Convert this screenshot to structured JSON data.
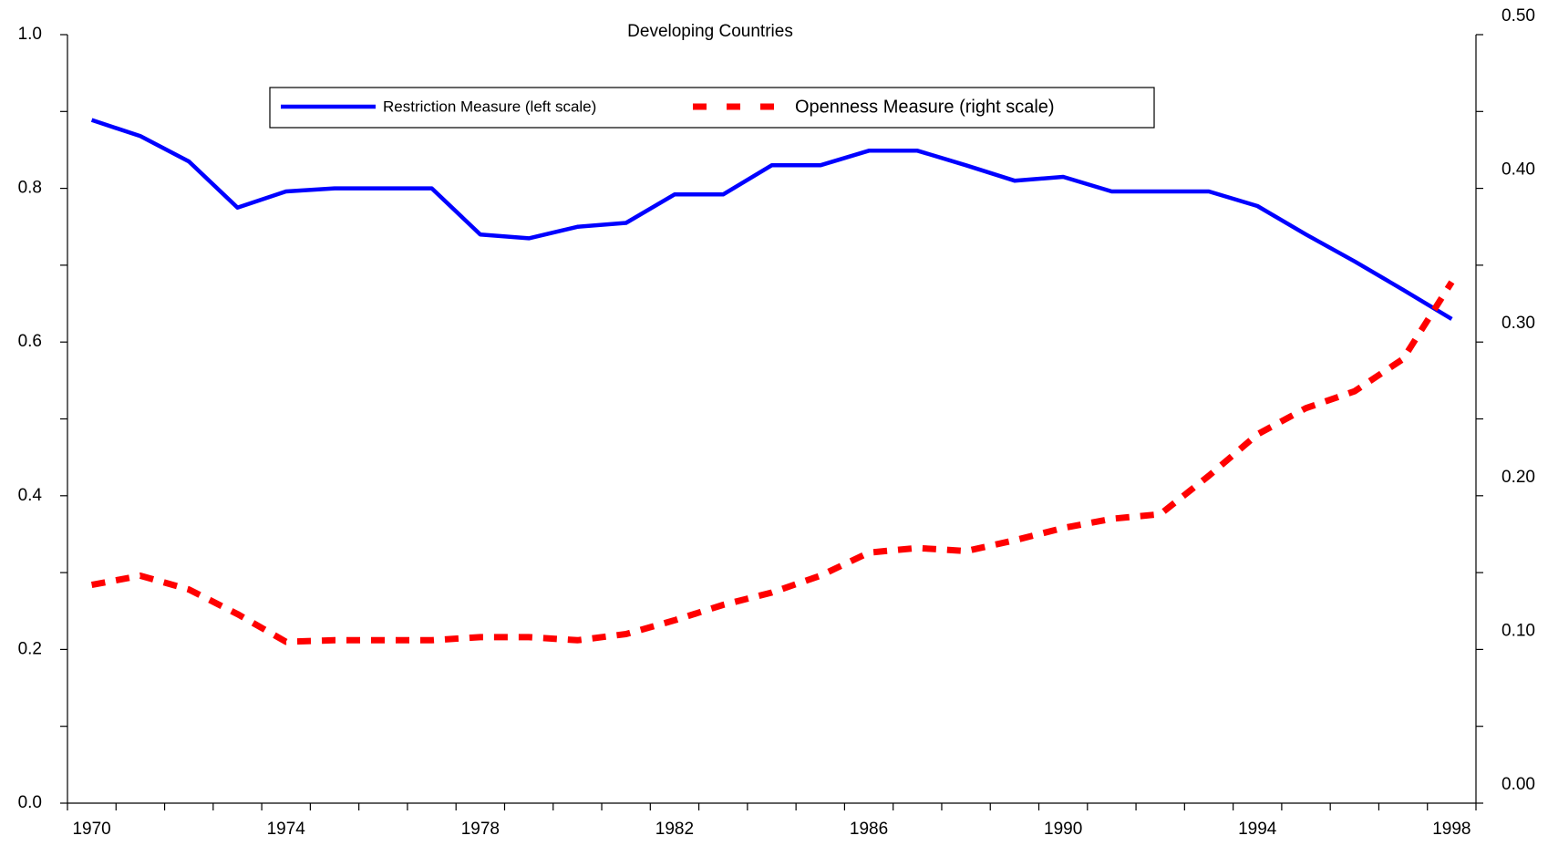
{
  "chart_data": {
    "type": "line",
    "title": "Developing Countries",
    "categories": [
      "1970",
      null,
      null,
      null,
      "1974",
      null,
      null,
      null,
      "1978",
      null,
      null,
      null,
      "1982",
      null,
      null,
      null,
      "1986",
      null,
      null,
      null,
      "1990",
      null,
      null,
      null,
      "1994",
      null,
      null,
      null,
      "1998"
    ],
    "series": [
      {
        "name": "Restriction Measure (left scale)",
        "color": "#0000ff",
        "axis": "y",
        "values": [
          0.889,
          0.868,
          0.835,
          0.775,
          0.796,
          0.8,
          0.8,
          0.8,
          0.74,
          0.735,
          0.75,
          0.755,
          0.792,
          0.792,
          0.83,
          0.83,
          0.849,
          0.849,
          0.83,
          0.81,
          0.815,
          0.796,
          0.796,
          0.796,
          0.777,
          0.74,
          0.705,
          0.668,
          0.63
        ]
      },
      {
        "name": "Openness Measure (right scale)",
        "color": "#ff0000",
        "axis": "y2",
        "dashed": true,
        "values": [
          0.142,
          0.148,
          0.139,
          0.123,
          0.105,
          0.106,
          0.106,
          0.106,
          0.108,
          0.108,
          0.106,
          0.11,
          0.119,
          0.129,
          0.137,
          0.148,
          0.163,
          0.166,
          0.164,
          0.171,
          0.179,
          0.185,
          0.188,
          0.213,
          0.24,
          0.257,
          0.268,
          0.289,
          0.339
        ]
      }
    ],
    "ylim": [
      0,
      1
    ],
    "yticks": [
      {
        "value": 0,
        "label": "0.0"
      },
      0.2,
      0.4,
      0.6,
      0.8,
      {
        "value": 1,
        "label": "1.0"
      }
    ],
    "y2lim": [
      0,
      0.5
    ],
    "y2ticks": [
      {
        "value": 0,
        "label": "0.00"
      },
      {
        "value": 0.1,
        "label": "0.10"
      },
      {
        "value": 0.2,
        "label": "0.20"
      },
      {
        "value": 0.3,
        "label": "0.30"
      },
      {
        "value": 0.4,
        "label": "0.40"
      },
      {
        "value": 0.5,
        "label": "0.50"
      }
    ],
    "grid": false,
    "legend": "top"
  }
}
